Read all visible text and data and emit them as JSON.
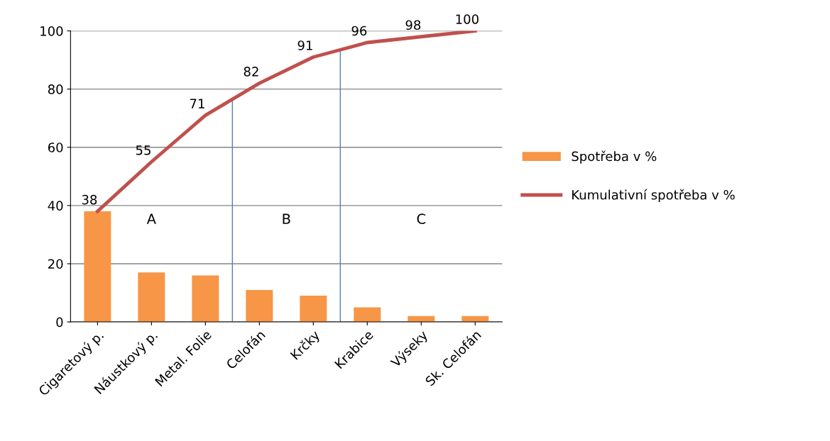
{
  "chart_data": {
    "type": "bar",
    "categories": [
      "Cigaretový p.",
      "Náustkový p.",
      "Metal. Folie",
      "Celofán",
      "Krčky",
      "Krabice",
      "Výseky",
      "Sk. Celofán"
    ],
    "series": [
      {
        "name": "Spotřeba v %",
        "color": "#f79646",
        "values": [
          38,
          17,
          16,
          11,
          9,
          5,
          2,
          2
        ]
      },
      {
        "name": "Kumulativní spotřeba v %",
        "type": "line",
        "color": "#c0504d",
        "values": [
          38,
          55,
          71,
          82,
          91,
          96,
          98,
          100
        ],
        "value_labels": [
          "38",
          "55",
          "71",
          "82",
          "91",
          "96",
          "98",
          "100"
        ]
      }
    ],
    "ylim": [
      0,
      100
    ],
    "yticks": [
      0,
      20,
      40,
      60,
      80,
      100
    ],
    "grid": "y",
    "legend": "right",
    "annotations": [
      "A",
      "B",
      "C"
    ]
  }
}
